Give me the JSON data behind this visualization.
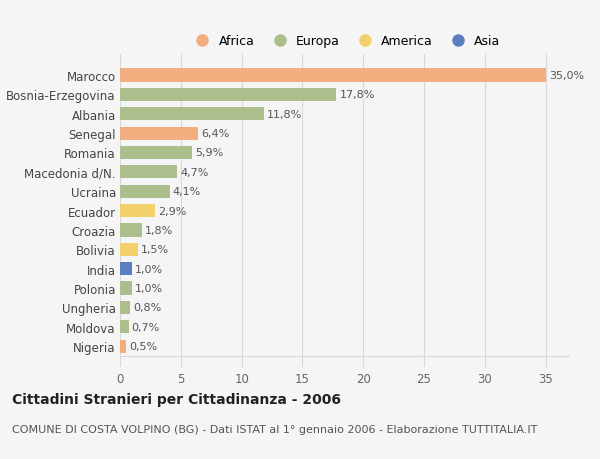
{
  "categories": [
    "Nigeria",
    "Moldova",
    "Ungheria",
    "Polonia",
    "India",
    "Bolivia",
    "Croazia",
    "Ecuador",
    "Ucraina",
    "Macedonia d/N.",
    "Romania",
    "Senegal",
    "Albania",
    "Bosnia-Erzegovina",
    "Marocco"
  ],
  "values": [
    0.5,
    0.7,
    0.8,
    1.0,
    1.0,
    1.5,
    1.8,
    2.9,
    4.1,
    4.7,
    5.9,
    6.4,
    11.8,
    17.8,
    35.0
  ],
  "labels": [
    "0,5%",
    "0,7%",
    "0,8%",
    "1,0%",
    "1,0%",
    "1,5%",
    "1,8%",
    "2,9%",
    "4,1%",
    "4,7%",
    "5,9%",
    "6,4%",
    "11,8%",
    "17,8%",
    "35,0%"
  ],
  "continent": [
    "Africa",
    "Europa",
    "Europa",
    "Europa",
    "Asia",
    "America",
    "Europa",
    "America",
    "Europa",
    "Europa",
    "Europa",
    "Africa",
    "Europa",
    "Europa",
    "Africa"
  ],
  "colors": {
    "Africa": "#F2AE7E",
    "Europa": "#ABBE8C",
    "America": "#F2D06B",
    "Asia": "#5B7FBF"
  },
  "legend_order": [
    "Africa",
    "Europa",
    "America",
    "Asia"
  ],
  "xlim": [
    0,
    37
  ],
  "xticks": [
    0,
    5,
    10,
    15,
    20,
    25,
    30,
    35
  ],
  "title": "Cittadini Stranieri per Cittadinanza - 2006",
  "subtitle": "COMUNE DI COSTA VOLPINO (BG) - Dati ISTAT al 1° gennaio 2006 - Elaborazione TUTTITALIA.IT",
  "bg_color": "#F5F5F5",
  "grid_color": "#D8D8D8",
  "bar_height": 0.68,
  "label_fontsize": 8,
  "title_fontsize": 10,
  "subtitle_fontsize": 8,
  "ytick_fontsize": 8.5
}
